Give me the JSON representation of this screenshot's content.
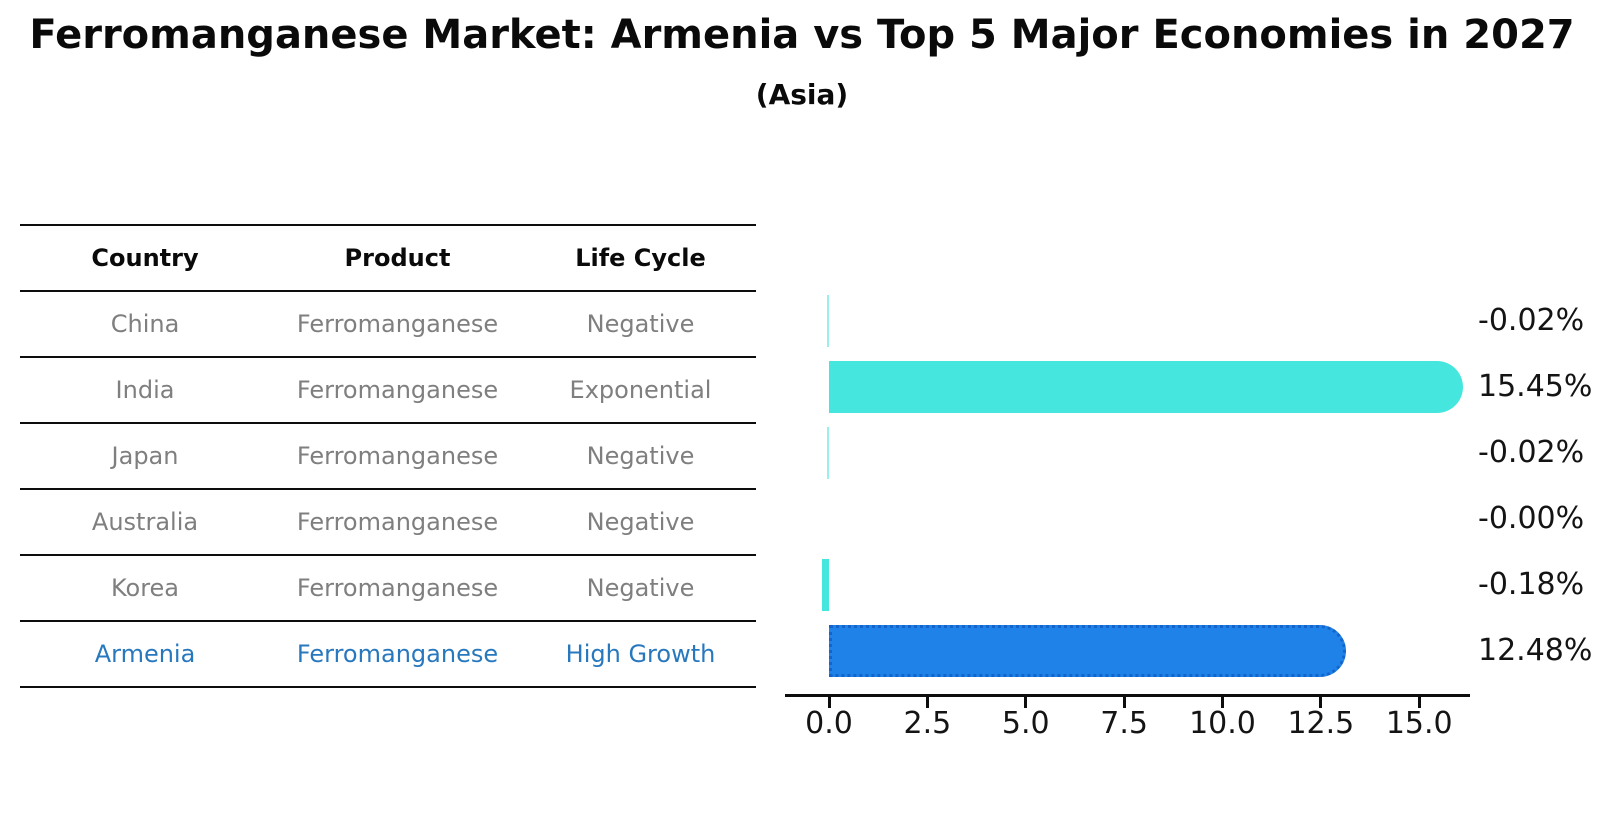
{
  "chart_data": {
    "type": "bar",
    "orientation": "horizontal",
    "title": "Ferromanganese Market: Armenia vs Top 5 Major Economies in 2027",
    "subtitle": "(Asia)",
    "categories": [
      "China",
      "India",
      "Japan",
      "Australia",
      "Korea",
      "Armenia"
    ],
    "values": [
      -0.02,
      15.45,
      -0.02,
      0.0,
      -0.18,
      12.48
    ],
    "value_labels": [
      "-0.02%",
      "15.45%",
      "-0.02%",
      "-0.00%",
      "-0.18%",
      "12.48%"
    ],
    "xlabel": "",
    "ylabel": "",
    "xlim": [
      -1.1,
      16.3
    ],
    "xticks": [
      0.0,
      2.5,
      5.0,
      7.5,
      10.0,
      12.5,
      15.0
    ],
    "xtick_labels": [
      "0.0",
      "2.5",
      "5.0",
      "7.5",
      "10.0",
      "12.5",
      "15.0"
    ],
    "grid": false,
    "legend": false,
    "bar_color": "#45E6DE",
    "highlight_index": 5,
    "highlight_color": "#1E82E8",
    "highlight_border_color": "#1365CB"
  },
  "table": {
    "headers": [
      "Country",
      "Product",
      "Life Cycle"
    ],
    "rows": [
      {
        "country": "China",
        "product": "Ferromanganese",
        "life_cycle": "Negative"
      },
      {
        "country": "India",
        "product": "Ferromanganese",
        "life_cycle": "Exponential"
      },
      {
        "country": "Japan",
        "product": "Ferromanganese",
        "life_cycle": "Negative"
      },
      {
        "country": "Australia",
        "product": "Ferromanganese",
        "life_cycle": "Negative"
      },
      {
        "country": "Korea",
        "product": "Ferromanganese",
        "life_cycle": "Negative"
      },
      {
        "country": "Armenia",
        "product": "Ferromanganese",
        "life_cycle": "High Growth"
      }
    ],
    "highlight_row_index": 5,
    "row_text_color": "#7f7f7f",
    "highlight_text_color": "#2878BE"
  }
}
